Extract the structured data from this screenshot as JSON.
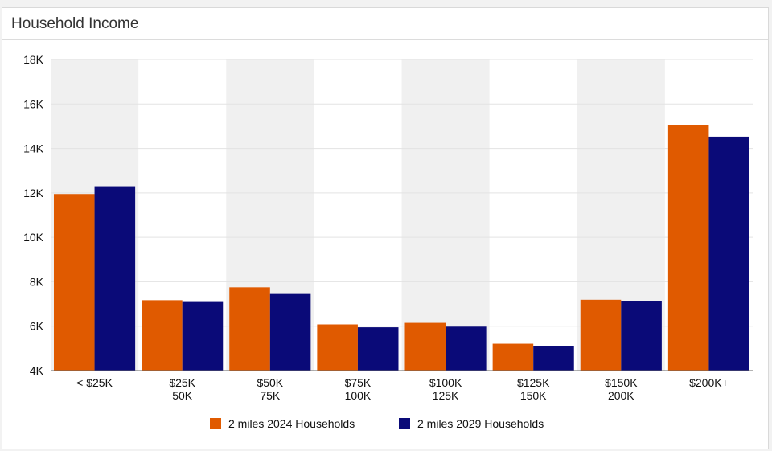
{
  "panel": {
    "title": "Household Income"
  },
  "chart_data": {
    "type": "bar",
    "title": "",
    "xlabel": "",
    "ylabel": "",
    "categories": [
      [
        "< $25K"
      ],
      [
        "$25K",
        "50K"
      ],
      [
        "$50K",
        "75K"
      ],
      [
        "$75K",
        "100K"
      ],
      [
        "$100K",
        "125K"
      ],
      [
        "$125K",
        "150K"
      ],
      [
        "$150K",
        "200K"
      ],
      [
        "$200K+"
      ]
    ],
    "series": [
      {
        "name": "2 miles 2024 Households",
        "color": "#e05a00",
        "values": [
          11950,
          7170,
          7750,
          6080,
          6150,
          5210,
          7190,
          15050
        ]
      },
      {
        "name": "2 miles 2029 Households",
        "color": "#0a0a78",
        "values": [
          12300,
          7090,
          7450,
          5950,
          5980,
          5090,
          7130,
          14530
        ]
      }
    ],
    "ylim": [
      4000,
      18000
    ],
    "yticks": [
      4000,
      6000,
      8000,
      10000,
      12000,
      14000,
      16000,
      18000
    ],
    "ytick_labels": [
      "4K",
      "6K",
      "8K",
      "10K",
      "12K",
      "14K",
      "16K",
      "18K"
    ],
    "band_color": "#f0f0f0",
    "grid": true,
    "legend_position": "bottom-center"
  }
}
